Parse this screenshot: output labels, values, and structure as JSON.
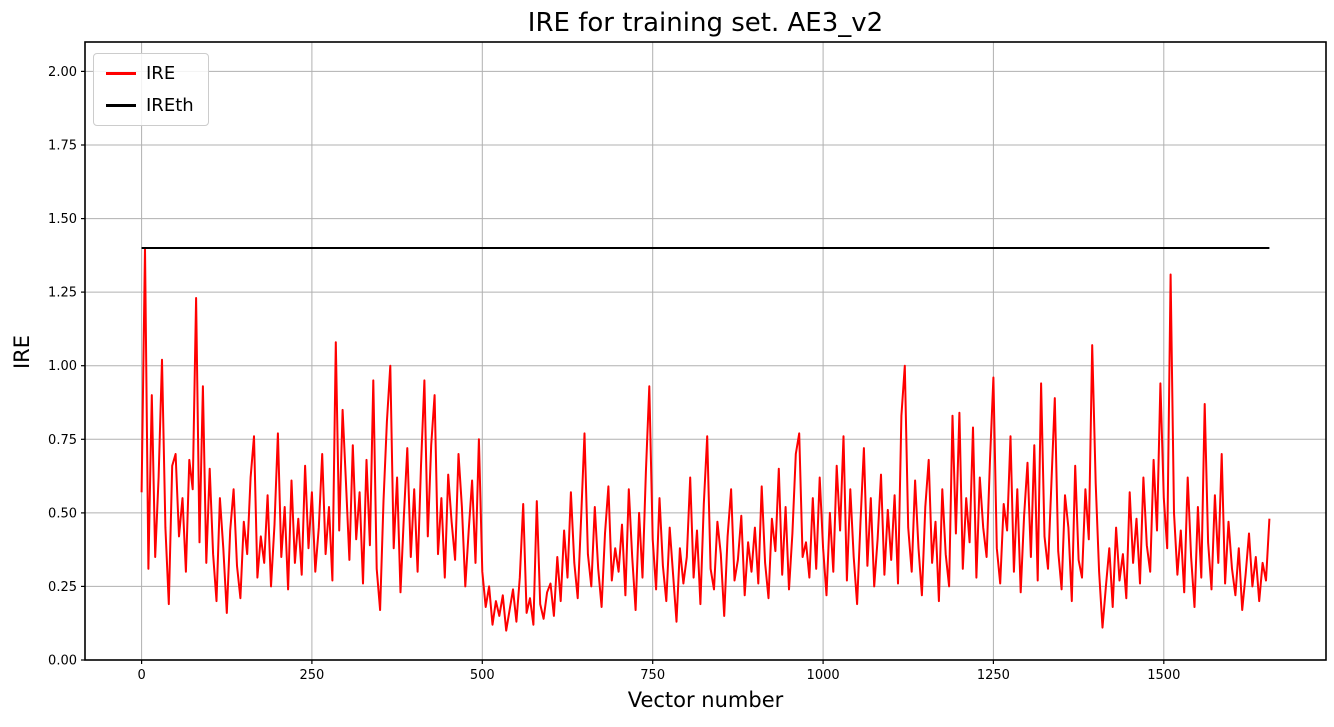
{
  "title": "IRE for training set. AE3_v2",
  "colors": {
    "ire_line": "#ff0000",
    "threshold_line": "#000000",
    "grid": "#b0b0b0",
    "axis": "#000000",
    "background": "#ffffff"
  },
  "legend": {
    "items": [
      {
        "label": "IRE",
        "color": "#ff0000"
      },
      {
        "label": "IREth",
        "color": "#000000"
      }
    ],
    "position": "upper left"
  },
  "chart_data": {
    "type": "line",
    "title": "IRE for training set. AE3_v2",
    "xlabel": "Vector number",
    "ylabel": "IRE",
    "xlim": [
      -83,
      1738
    ],
    "ylim": [
      0,
      2.1
    ],
    "x_ticks": [
      0,
      250,
      500,
      750,
      1000,
      1250,
      1500
    ],
    "y_ticks": [
      0.0,
      0.25,
      0.5,
      0.75,
      1.0,
      1.25,
      1.5,
      1.75,
      2.0
    ],
    "grid": true,
    "legend_position": "upper left",
    "series": [
      {
        "name": "IRE",
        "color": "#ff0000",
        "line_width": 2,
        "x_start": 0,
        "x_step": 5,
        "values": [
          0.57,
          1.4,
          0.31,
          0.9,
          0.35,
          0.62,
          1.02,
          0.45,
          0.19,
          0.66,
          0.7,
          0.42,
          0.55,
          0.3,
          0.68,
          0.58,
          1.23,
          0.4,
          0.93,
          0.33,
          0.65,
          0.36,
          0.2,
          0.55,
          0.38,
          0.16,
          0.44,
          0.58,
          0.32,
          0.21,
          0.47,
          0.36,
          0.62,
          0.76,
          0.28,
          0.42,
          0.33,
          0.56,
          0.25,
          0.46,
          0.77,
          0.35,
          0.52,
          0.24,
          0.61,
          0.33,
          0.48,
          0.29,
          0.66,
          0.38,
          0.57,
          0.3,
          0.45,
          0.7,
          0.36,
          0.52,
          0.27,
          1.08,
          0.44,
          0.85,
          0.6,
          0.34,
          0.73,
          0.41,
          0.57,
          0.26,
          0.68,
          0.39,
          0.95,
          0.31,
          0.17,
          0.54,
          0.81,
          1.0,
          0.38,
          0.62,
          0.23,
          0.49,
          0.72,
          0.35,
          0.58,
          0.3,
          0.66,
          0.95,
          0.42,
          0.73,
          0.9,
          0.36,
          0.55,
          0.28,
          0.63,
          0.47,
          0.34,
          0.7,
          0.52,
          0.25,
          0.44,
          0.61,
          0.33,
          0.75,
          0.3,
          0.18,
          0.25,
          0.12,
          0.2,
          0.15,
          0.22,
          0.1,
          0.17,
          0.24,
          0.13,
          0.28,
          0.53,
          0.16,
          0.21,
          0.12,
          0.54,
          0.19,
          0.14,
          0.23,
          0.26,
          0.15,
          0.35,
          0.2,
          0.44,
          0.28,
          0.57,
          0.33,
          0.21,
          0.48,
          0.77,
          0.36,
          0.25,
          0.52,
          0.31,
          0.18,
          0.43,
          0.59,
          0.27,
          0.38,
          0.3,
          0.46,
          0.22,
          0.58,
          0.35,
          0.17,
          0.5,
          0.28,
          0.64,
          0.93,
          0.41,
          0.24,
          0.55,
          0.32,
          0.2,
          0.45,
          0.29,
          0.13,
          0.38,
          0.26,
          0.35,
          0.62,
          0.28,
          0.44,
          0.19,
          0.53,
          0.76,
          0.31,
          0.24,
          0.47,
          0.36,
          0.15,
          0.42,
          0.58,
          0.27,
          0.34,
          0.49,
          0.22,
          0.4,
          0.3,
          0.45,
          0.26,
          0.59,
          0.33,
          0.21,
          0.48,
          0.37,
          0.65,
          0.29,
          0.52,
          0.24,
          0.43,
          0.7,
          0.77,
          0.35,
          0.4,
          0.28,
          0.55,
          0.31,
          0.62,
          0.38,
          0.22,
          0.5,
          0.3,
          0.66,
          0.44,
          0.76,
          0.27,
          0.58,
          0.35,
          0.19,
          0.47,
          0.72,
          0.32,
          0.55,
          0.25,
          0.41,
          0.63,
          0.29,
          0.51,
          0.34,
          0.56,
          0.26,
          0.83,
          1.0,
          0.45,
          0.3,
          0.61,
          0.38,
          0.22,
          0.52,
          0.68,
          0.33,
          0.47,
          0.2,
          0.58,
          0.36,
          0.25,
          0.83,
          0.43,
          0.84,
          0.31,
          0.55,
          0.4,
          0.79,
          0.28,
          0.62,
          0.45,
          0.35,
          0.68,
          0.96,
          0.38,
          0.26,
          0.53,
          0.44,
          0.76,
          0.3,
          0.58,
          0.23,
          0.49,
          0.67,
          0.35,
          0.73,
          0.27,
          0.94,
          0.42,
          0.31,
          0.6,
          0.89,
          0.37,
          0.24,
          0.56,
          0.45,
          0.2,
          0.66,
          0.34,
          0.28,
          0.58,
          0.41,
          1.07,
          0.6,
          0.3,
          0.11,
          0.25,
          0.38,
          0.18,
          0.45,
          0.27,
          0.36,
          0.21,
          0.57,
          0.33,
          0.48,
          0.26,
          0.62,
          0.39,
          0.3,
          0.68,
          0.44,
          0.94,
          0.55,
          0.38,
          1.31,
          0.5,
          0.29,
          0.44,
          0.23,
          0.62,
          0.35,
          0.18,
          0.52,
          0.28,
          0.87,
          0.4,
          0.24,
          0.56,
          0.33,
          0.7,
          0.26,
          0.47,
          0.31,
          0.22,
          0.38,
          0.17,
          0.29,
          0.43,
          0.25,
          0.35,
          0.2,
          0.33,
          0.27,
          0.48
        ]
      },
      {
        "name": "IREth",
        "color": "#000000",
        "line_width": 2,
        "x": [
          0,
          1655
        ],
        "values": [
          1.4,
          1.4
        ]
      }
    ]
  }
}
